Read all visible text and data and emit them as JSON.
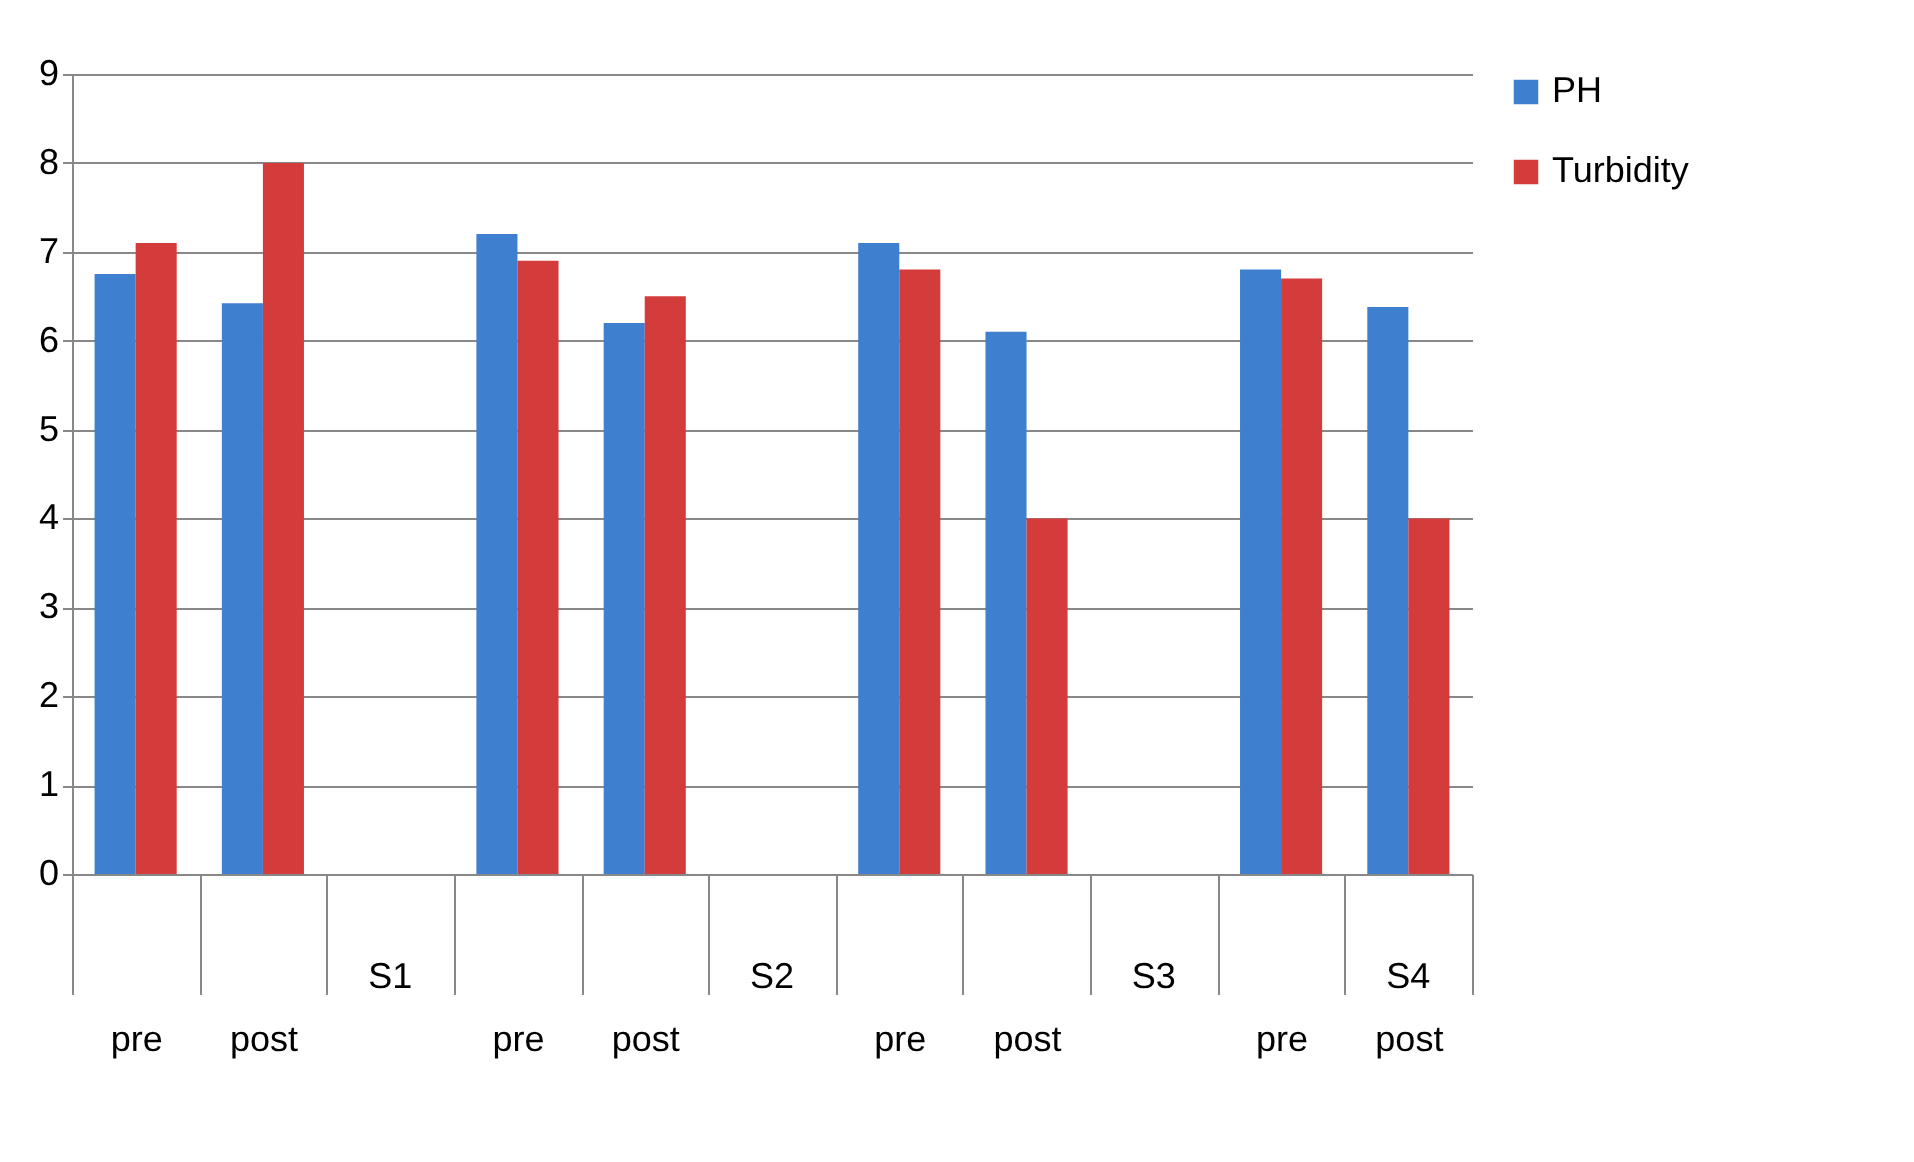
{
  "chart_data": {
    "type": "bar",
    "categories": [
      "pre",
      "post",
      null,
      "pre",
      "post",
      null,
      "pre",
      "post",
      null,
      "pre",
      "post"
    ],
    "series": [
      {
        "name": "PH",
        "color": "#3f7fcf",
        "values": [
          6.75,
          6.42,
          null,
          7.2,
          6.2,
          null,
          7.1,
          6.1,
          null,
          6.8,
          6.38
        ]
      },
      {
        "name": "Turbidity",
        "color": "#d43c3c",
        "values": [
          7.1,
          8.0,
          null,
          6.9,
          6.5,
          null,
          6.8,
          4.0,
          null,
          6.7,
          4.0
        ]
      }
    ],
    "annotations": [
      "S1",
      "S2",
      "S3",
      "S4"
    ],
    "ylim": [
      0,
      9
    ],
    "yticks": [
      0,
      1,
      2,
      3,
      4,
      5,
      6,
      7,
      8,
      9
    ],
    "grid": "y",
    "legend": "right"
  }
}
